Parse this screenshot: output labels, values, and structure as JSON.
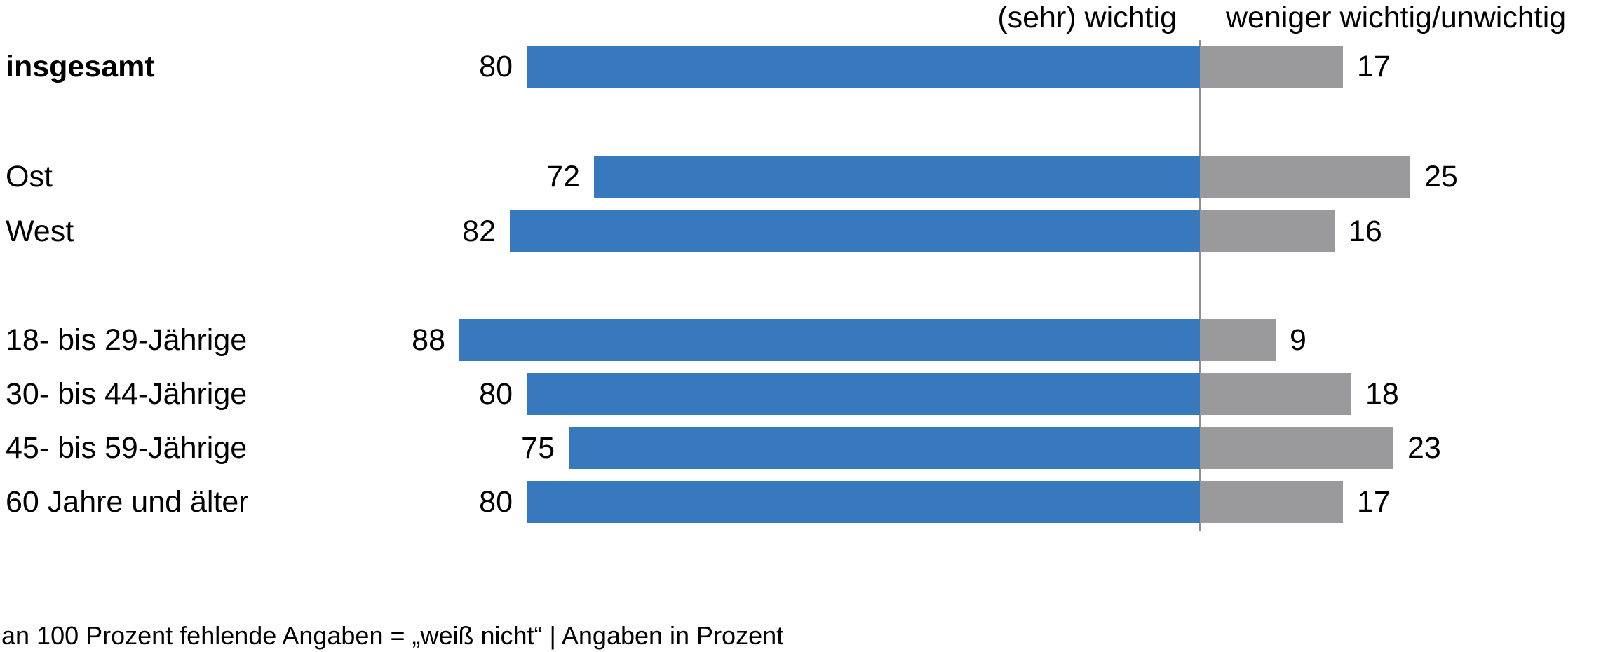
{
  "header": {
    "left": "(sehr) wichtig",
    "right": "weniger wichtig/unwichtig"
  },
  "footnote": "an 100 Prozent fehlende Angaben = „weiß nicht“ | Angaben in Prozent",
  "colors": {
    "primary_blue": "#3879BD",
    "secondary_gray": "#9A999B",
    "divider_gray": "#8E8E8E",
    "text": "#000000"
  },
  "chart_data": {
    "type": "bar",
    "orientation": "horizontal-diverging",
    "title": "",
    "unit": "Prozent",
    "categories": [
      "insgesamt",
      "Ost",
      "West",
      "18- bis 29-Jährige",
      "30- bis 44-Jährige",
      "45- bis 59-Jährige",
      "60 Jahre und älter"
    ],
    "bold_categories": [
      "insgesamt"
    ],
    "series": [
      {
        "name": "(sehr) wichtig",
        "color": "#3879BD",
        "values": [
          80,
          72,
          82,
          88,
          80,
          75,
          80
        ]
      },
      {
        "name": "weniger wichtig/unwichtig",
        "color": "#9A999B",
        "values": [
          17,
          25,
          16,
          9,
          18,
          23,
          17
        ]
      }
    ],
    "groups": [
      [
        0
      ],
      [
        1,
        2
      ],
      [
        3,
        4,
        5,
        6
      ]
    ],
    "legend_position": "top, split on either side of the divider axis",
    "axis": "blue bars grow leftwards from central divider, gray bars grow rightwards; value labels at outer bar ends",
    "note": "an 100 Prozent fehlende Angaben = „weiß nicht“ | Angaben in Prozent"
  }
}
